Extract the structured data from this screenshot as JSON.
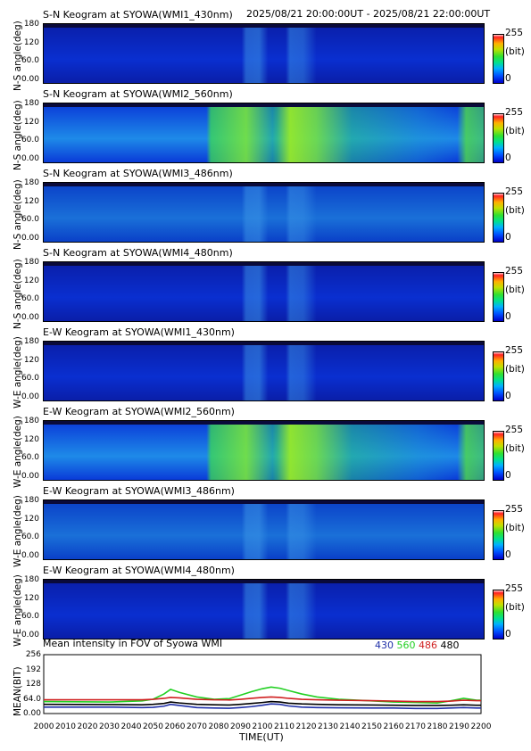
{
  "header": {
    "time_range": "2025/08/21 20:00:00UT - 2025/08/21 22:00:00UT"
  },
  "colorbar": {
    "max": "255",
    "unit": "(bit)",
    "min": "0"
  },
  "keograms": [
    {
      "title": "S-N Keogram at SYOWA(WMI1_430nm)",
      "ylabel": "N-S angle(deg)",
      "ticks": [
        "180",
        "120",
        "60.0",
        "0.00"
      ],
      "brightness": 0.15,
      "tint": "blue"
    },
    {
      "title": "S-N Keogram at SYOWA(WMI2_560nm)",
      "ylabel": "N-S angle(deg)",
      "ticks": [
        "180",
        "120",
        "60.0",
        "0.00"
      ],
      "brightness": 0.55,
      "tint": "green"
    },
    {
      "title": "S-N Keogram at SYOWA(WMI3_486nm)",
      "ylabel": "N-S angle(deg)",
      "ticks": [
        "180",
        "120",
        "60.0",
        "0.00"
      ],
      "brightness": 0.3,
      "tint": "teal"
    },
    {
      "title": "S-N Keogram at SYOWA(WMI4_480nm)",
      "ylabel": "N-S angle(deg)",
      "ticks": [
        "180",
        "120",
        "60.0",
        "0.00"
      ],
      "brightness": 0.25,
      "tint": "blue"
    },
    {
      "title": "E-W Keogram at SYOWA(WMI1_430nm)",
      "ylabel": "W-E angle(deg)",
      "ticks": [
        "180",
        "120",
        "60.0",
        "0.00"
      ],
      "brightness": 0.15,
      "tint": "blue"
    },
    {
      "title": "E-W Keogram at SYOWA(WMI2_560nm)",
      "ylabel": "W-E angle(deg)",
      "ticks": [
        "180",
        "120",
        "60.0",
        "0.00"
      ],
      "brightness": 0.5,
      "tint": "green"
    },
    {
      "title": "E-W Keogram at SYOWA(WMI3_486nm)",
      "ylabel": "W-E angle(deg)",
      "ticks": [
        "180",
        "120",
        "60.0",
        "0.00"
      ],
      "brightness": 0.3,
      "tint": "teal"
    },
    {
      "title": "E-W Keogram at SYOWA(WMI4_480nm)",
      "ylabel": "W-E angle(deg)",
      "ticks": [
        "180",
        "120",
        "60.0",
        "0.00"
      ],
      "brightness": 0.25,
      "tint": "blue"
    }
  ],
  "chart_data": {
    "type": "line",
    "title": "Mean intensity in FOV of Syowa WMI",
    "xlabel": "TIME(UT)",
    "ylabel": "MEAN(BIT)",
    "ylim": [
      0,
      256
    ],
    "yticks": [
      "256",
      "192",
      "128",
      "64.0",
      "0.00"
    ],
    "xlim": [
      2000,
      2200
    ],
    "xticks": [
      "2000",
      "2010",
      "2020",
      "2030",
      "2040",
      "2050",
      "2060",
      "2070",
      "2080",
      "2090",
      "2100",
      "2110",
      "2120",
      "2130",
      "2140",
      "2150",
      "2160",
      "2170",
      "2180",
      "2190",
      "2200"
    ],
    "x": [
      2000,
      2030,
      2045,
      2050,
      2055,
      2058,
      2062,
      2070,
      2078,
      2085,
      2090,
      2095,
      2100,
      2104,
      2108,
      2112,
      2118,
      2125,
      2135,
      2150,
      2160,
      2170,
      2180,
      2186,
      2192,
      2198,
      2200
    ],
    "series": [
      {
        "name": "430",
        "color": "#1f2fa8",
        "values": [
          28,
          28,
          26,
          27,
          32,
          40,
          35,
          26,
          24,
          23,
          26,
          30,
          36,
          42,
          40,
          33,
          28,
          26,
          25,
          24,
          24,
          22,
          22,
          24,
          26,
          24,
          24
        ]
      },
      {
        "name": "560",
        "color": "#22d022",
        "values": [
          52,
          50,
          55,
          62,
          85,
          105,
          92,
          72,
          62,
          65,
          80,
          95,
          108,
          115,
          110,
          100,
          85,
          72,
          62,
          55,
          50,
          48,
          46,
          55,
          66,
          58,
          58
        ]
      },
      {
        "name": "486",
        "color": "#d02020",
        "values": [
          60,
          60,
          60,
          62,
          66,
          70,
          68,
          62,
          60,
          59,
          62,
          66,
          70,
          72,
          70,
          66,
          62,
          60,
          58,
          56,
          54,
          52,
          52,
          54,
          58,
          56,
          56
        ]
      },
      {
        "name": "480",
        "color": "#000000",
        "values": [
          40,
          39,
          38,
          40,
          44,
          50,
          46,
          40,
          38,
          37,
          40,
          44,
          48,
          52,
          50,
          45,
          42,
          40,
          38,
          37,
          36,
          35,
          35,
          36,
          38,
          36,
          36
        ]
      }
    ]
  }
}
